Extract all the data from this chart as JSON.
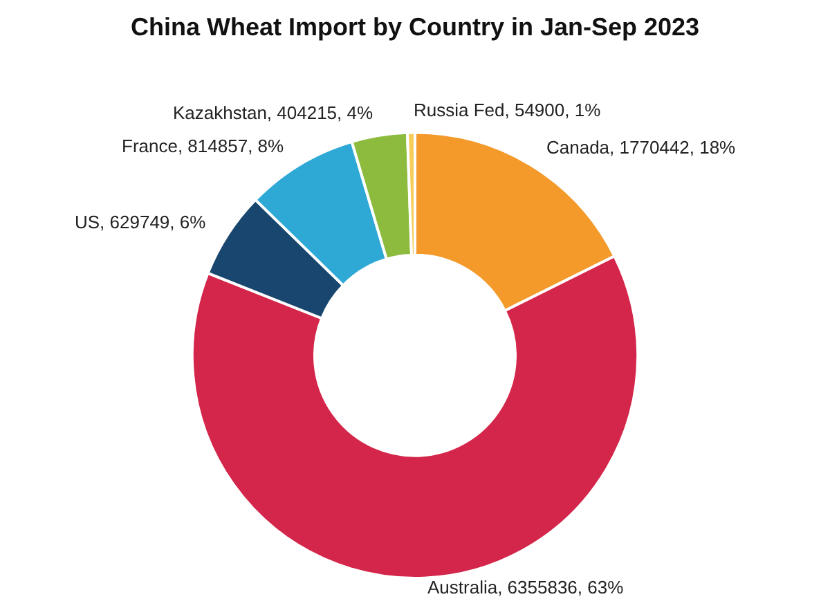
{
  "chart_data": {
    "type": "donut",
    "title": "China Wheat Import by Country in Jan-Sep 2023",
    "categories": [
      "Canada",
      "Australia",
      "US",
      "France",
      "Kazakhstan",
      "Russia Fed"
    ],
    "values": [
      1770442,
      6355836,
      629749,
      814857,
      404215,
      54900
    ],
    "colors": [
      "#f39a2b",
      "#d4264a",
      "#18466f",
      "#2ea9d6",
      "#8dbb3e",
      "#f6cd5b"
    ],
    "value_labels": [
      "1770442, 18%",
      "6355836, 63%",
      "629749, 6%",
      "814857, 8%",
      "404215, 4%",
      "54900, 1%"
    ],
    "legend": false
  }
}
